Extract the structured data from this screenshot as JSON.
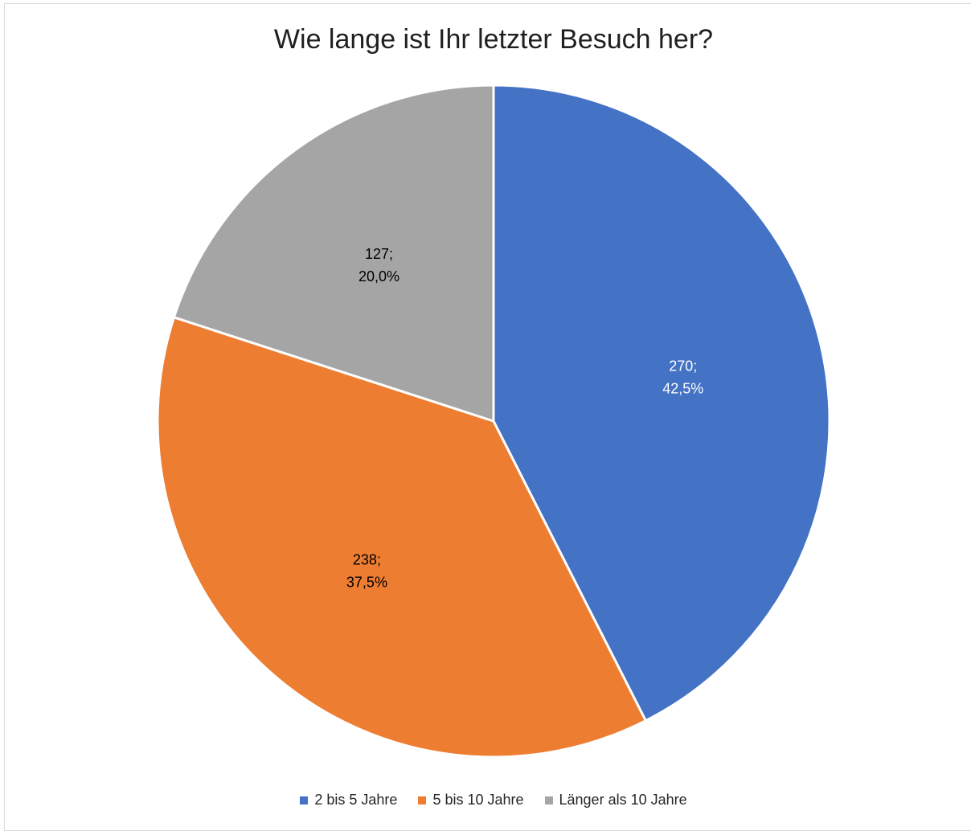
{
  "chart_data": {
    "type": "pie",
    "title": "Wie lange ist Ihr letzter Besuch her?",
    "slices": [
      {
        "name": "2 bis 5 Jahre",
        "value": 270,
        "percent": "42,5%",
        "label": "270;\n42,5%",
        "color": "#4472c4",
        "label_color": "#ffffff"
      },
      {
        "name": "5 bis 10 Jahre",
        "value": 238,
        "percent": "37,5%",
        "label": "238;\n37,5%",
        "color": "#ed7d31",
        "label_color": "#000000"
      },
      {
        "name": "Länger als 10 Jahre",
        "value": 127,
        "percent": "20,0%",
        "label": "127;\n20,0%",
        "color": "#a5a5a5",
        "label_color": "#000000"
      }
    ],
    "legend_position": "bottom",
    "start_angle": "12 o'clock",
    "direction": "clockwise"
  }
}
